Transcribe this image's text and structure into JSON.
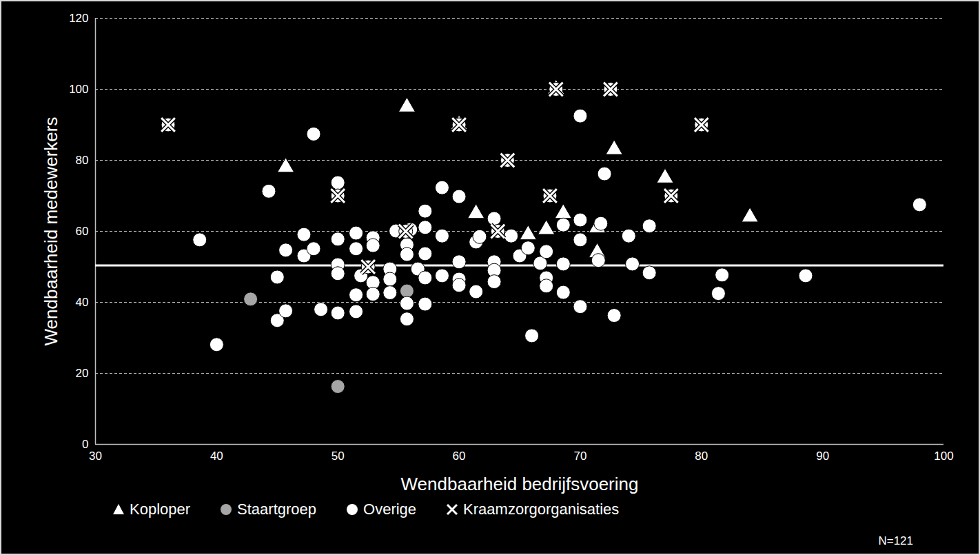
{
  "chart_data": {
    "type": "scatter",
    "x_label": "Wendbaarheid bedrijfsvoering",
    "y_label": "Wendbaarheid medewerkers",
    "xlim": [
      30,
      100
    ],
    "ylim": [
      0,
      120
    ],
    "xticks": [
      30,
      40,
      50,
      60,
      70,
      80,
      90,
      100
    ],
    "yticks": [
      0,
      20,
      40,
      60,
      80,
      100,
      120
    ],
    "grid": true,
    "legend": "bottom",
    "annotation": "N=121",
    "reference_line": 50.4,
    "series": [
      {
        "name": "Koploper",
        "color": "#ffffff",
        "marker": "triangle",
        "x": [
          45.7,
          55.7,
          60.0,
          61.4,
          65.7,
          67.2,
          68.6,
          71.4,
          71.4,
          72.8,
          77.0,
          84.0,
          68.0
        ],
        "y": [
          78,
          95,
          90,
          65,
          59,
          60.5,
          65,
          61,
          54,
          83,
          75,
          64,
          100
        ]
      },
      {
        "name": "Staartgroep",
        "color": "#a6a6a6",
        "marker": "circle",
        "x": [
          42.8,
          55.7,
          50.0
        ],
        "y": [
          40.9,
          43.2,
          16.3
        ]
      },
      {
        "name": "Overige",
        "color": "#ffffff",
        "marker": "circle",
        "x": [
          38.6,
          40.0,
          44.3,
          45.0,
          45.0,
          45.7,
          45.7,
          47.2,
          47.2,
          48.0,
          48.0,
          48.6,
          50.0,
          50.0,
          50.0,
          50.0,
          50.0,
          51.5,
          51.5,
          51.5,
          51.5,
          51.9,
          52.9,
          52.9,
          52.9,
          52.9,
          54.3,
          54.3,
          54.3,
          54.8,
          55.7,
          55.7,
          55.7,
          55.7,
          56.0,
          56.6,
          57.2,
          57.2,
          57.2,
          57.2,
          57.2,
          58.6,
          58.6,
          58.6,
          60.0,
          60.0,
          60.0,
          60.0,
          61.4,
          61.4,
          61.7,
          62.9,
          62.9,
          62.9,
          62.9,
          64.3,
          65.0,
          65.7,
          66.0,
          66.7,
          67.2,
          67.2,
          67.2,
          68.6,
          68.6,
          68.6,
          70.0,
          70.0,
          70.0,
          70.0,
          71.5,
          71.7,
          72.0,
          72.8,
          74.0,
          74.3,
          75.7,
          75.7,
          81.7,
          81.4,
          88.6,
          98.0
        ],
        "y": [
          57.6,
          28.1,
          71.3,
          47.1,
          34.9,
          54.7,
          37.6,
          59.1,
          53.1,
          87.4,
          55.1,
          38.0,
          73.7,
          57.8,
          50.6,
          48.1,
          37.0,
          59.5,
          55.1,
          42.1,
          37.4,
          47.5,
          58.2,
          56.0,
          45.6,
          42.3,
          49.4,
          46.5,
          42.7,
          60.1,
          56.2,
          53.5,
          39.7,
          35.3,
          60.5,
          49.4,
          65.7,
          61.1,
          53.7,
          46.9,
          39.5,
          72.3,
          58.7,
          47.5,
          69.8,
          51.4,
          46.5,
          44.8,
          43.0,
          57.0,
          58.5,
          63.6,
          51.4,
          49.0,
          45.8,
          58.7,
          53.1,
          55.3,
          30.6,
          51.0,
          54.3,
          46.9,
          44.6,
          61.8,
          50.8,
          42.8,
          92.5,
          63.2,
          57.6,
          38.8,
          51.8,
          62.2,
          76.2,
          36.3,
          58.7,
          50.8,
          61.5,
          48.3,
          47.7,
          42.5,
          47.5,
          67.5
        ]
      },
      {
        "name": "Kraamzorgorganisaties",
        "color": "#ffffff",
        "marker": "x",
        "x": [
          36.0,
          50.0,
          52.5,
          55.6,
          60.0,
          63.2,
          64.0,
          67.5,
          68.0,
          72.5,
          77.5,
          80.0
        ],
        "y": [
          90,
          70,
          50,
          60,
          90,
          60,
          80,
          70,
          100,
          100,
          70,
          90
        ]
      }
    ]
  }
}
